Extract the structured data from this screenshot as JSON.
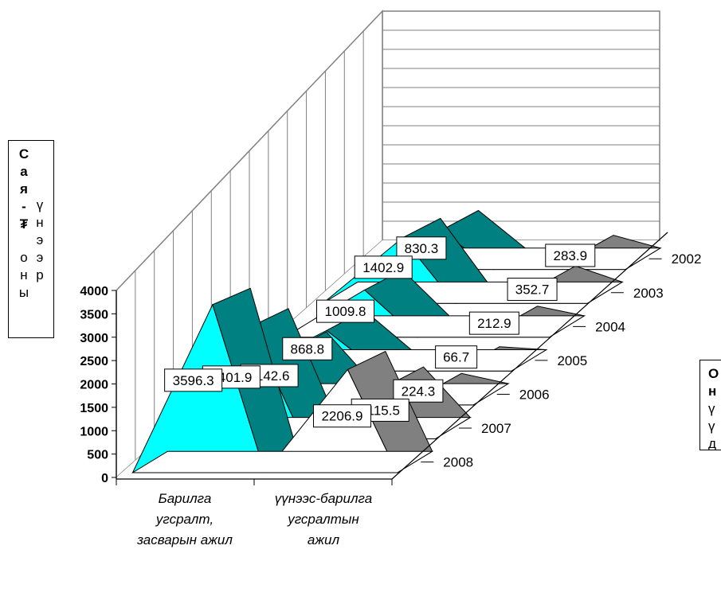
{
  "chart_data": {
    "type": "3d-area",
    "y_ticks": [
      "0",
      "500",
      "1000",
      "1500",
      "2000",
      "2500",
      "3000",
      "3500",
      "4000"
    ],
    "ylim": [
      0,
      4000
    ],
    "categories": [
      "Барилга угсралт, засварын ажил",
      "үүнээс-барилга угсралтын ажил"
    ],
    "category_lines": [
      [
        "Барилга",
        "угсралт,",
        "засварын ажил"
      ],
      [
        "үүнээс-барилга",
        "угсралтын",
        "ажил"
      ]
    ],
    "series": [
      {
        "name": "2002",
        "values": [
          830.3,
          283.9
        ],
        "labels": [
          "830.3",
          "283.9"
        ]
      },
      {
        "name": "2003",
        "values": [
          1402.9,
          352.7
        ],
        "labels": [
          "1402.9",
          "352.7"
        ]
      },
      {
        "name": "2004",
        "values": [
          1009.8,
          212.9
        ],
        "labels": [
          "1009.8",
          "212.9"
        ]
      },
      {
        "name": "2005",
        "values": [
          868.8,
          66.7
        ],
        "labels": [
          "868.8",
          "66.7"
        ]
      },
      {
        "name": "2006",
        "values": [
          1142.6,
          224.3
        ],
        "labels": [
          "1142.6",
          "224.3"
        ]
      },
      {
        "name": "2007",
        "values": [
          2401.9,
          1115.5
        ],
        "labels": [
          "2401.9",
          "1115.5"
        ]
      },
      {
        "name": "2008",
        "values": [
          3596.3,
          2206.9
        ],
        "labels": [
          "3596.3",
          "2206.9"
        ]
      }
    ],
    "colors": {
      "front": "#00ffff",
      "side": "#008080",
      "front2": "#ffffff",
      "side2": "#808080",
      "light": "#c0c0c0",
      "grid": "#808080"
    },
    "grid": true
  },
  "y_axis_title": {
    "col1": "Сая-₮",
    "col2": "үнээр",
    "col3": "оны"
  },
  "x_axis_title": {
    "col1": "Он",
    "col2": "үүд"
  }
}
